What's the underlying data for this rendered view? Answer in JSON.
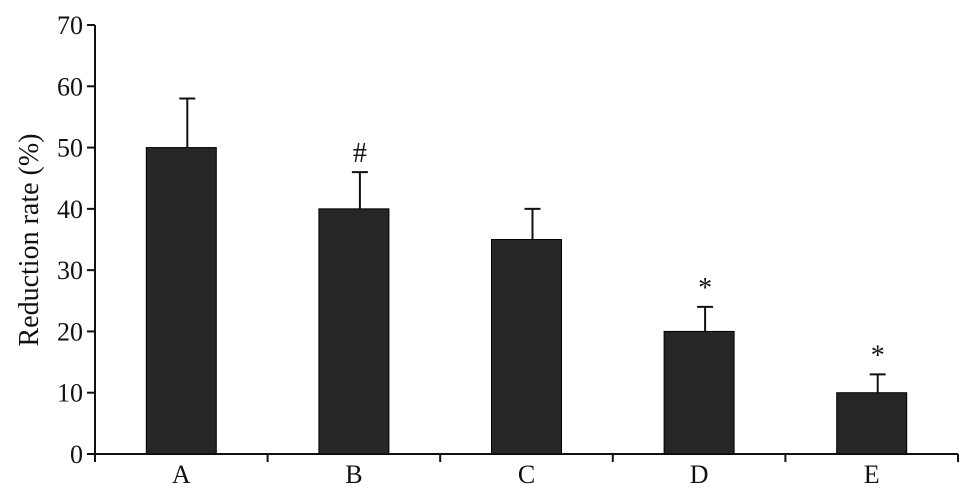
{
  "chart_data": {
    "type": "bar",
    "title": "",
    "xlabel": "",
    "ylabel": "Reduction rate (%)",
    "categories": [
      "A",
      "B",
      "C",
      "D",
      "E"
    ],
    "values": [
      50,
      40,
      35,
      20,
      10
    ],
    "error_plus": [
      8,
      6,
      5,
      4,
      3
    ],
    "annotations": [
      "",
      "#",
      "",
      "*",
      "*"
    ],
    "ylim": [
      0,
      70
    ],
    "yticks": [
      0,
      10,
      20,
      30,
      40,
      50,
      60,
      70
    ],
    "ytick_labels": [
      "0",
      "10",
      "20",
      "30",
      "40",
      "50",
      "60",
      "70"
    ],
    "grid": false,
    "bar_color": "#262626"
  }
}
